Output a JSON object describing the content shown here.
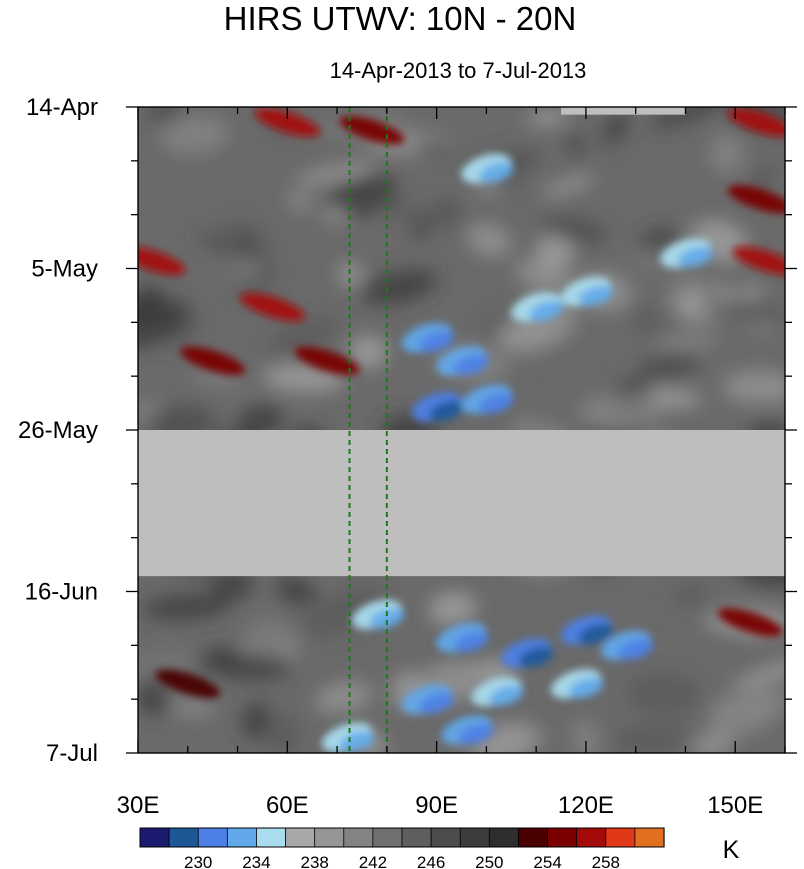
{
  "chart_data": {
    "type": "heatmap",
    "title": "HIRS UTWV: 10N - 20N",
    "subtitle": "14-Apr-2013 to 7-Jul-2013",
    "x_axis": {
      "range": [
        30,
        160
      ],
      "ticks": [
        {
          "value": 30,
          "label": "30E"
        },
        {
          "value": 60,
          "label": "60E"
        },
        {
          "value": 90,
          "label": "90E"
        },
        {
          "value": 120,
          "label": "120E"
        },
        {
          "value": 150,
          "label": "150E"
        }
      ]
    },
    "y_axis": {
      "range": [
        "2013-04-14",
        "2013-07-07"
      ],
      "orientation": "time increases downward",
      "ticks": [
        {
          "value": "2013-04-14",
          "label": "14-Apr"
        },
        {
          "value": "2013-05-05",
          "label": "5-May"
        },
        {
          "value": "2013-05-26",
          "label": "26-May"
        },
        {
          "value": "2013-06-16",
          "label": "16-Jun"
        },
        {
          "value": "2013-07-07",
          "label": "7-Jul"
        }
      ]
    },
    "reference_lines": [
      {
        "lon": 72.5,
        "color": "#1a7a1a",
        "style": "dashed"
      },
      {
        "lon": 80.0,
        "color": "#1a7a1a",
        "style": "dashed"
      }
    ],
    "missing_data": [
      {
        "start": "2013-05-26",
        "end": "2013-06-14",
        "lon_range": [
          30,
          160
        ],
        "color": "#bebebe"
      },
      {
        "start": "2013-04-14",
        "end": "2013-04-15",
        "lon_range": [
          115,
          140
        ],
        "color": "#bebebe"
      }
    ],
    "colorbar": {
      "unit": "K",
      "levels": [
        228,
        230,
        232,
        234,
        236,
        238,
        240,
        242,
        244,
        246,
        248,
        250,
        252,
        254,
        256,
        258,
        260
      ],
      "colors": [
        "#1a1a6e",
        "#1c5796",
        "#4d7fe6",
        "#61a8ea",
        "#a9dcee",
        "#a8a8a8",
        "#959595",
        "#838383",
        "#707070",
        "#5e5e5e",
        "#4c4c4c",
        "#3c3c3c",
        "#2e2e2e",
        "#4a0000",
        "#7a0000",
        "#a40a0a",
        "#e03818",
        "#e07020"
      ],
      "tick_labels": [
        "230",
        "234",
        "238",
        "242",
        "246",
        "250",
        "254",
        "258"
      ]
    },
    "features": [
      {
        "lon": 60,
        "date": "2013-04-16",
        "value": 256
      },
      {
        "lon": 77,
        "date": "2013-04-17",
        "value": 255
      },
      {
        "lon": 155,
        "date": "2013-04-16",
        "value": 256
      },
      {
        "lon": 155,
        "date": "2013-04-26",
        "value": 255
      },
      {
        "lon": 33,
        "date": "2013-05-04",
        "value": 256
      },
      {
        "lon": 57,
        "date": "2013-05-10",
        "value": 257
      },
      {
        "lon": 156,
        "date": "2013-05-04",
        "value": 256
      },
      {
        "lon": 45,
        "date": "2013-05-17",
        "value": 254
      },
      {
        "lon": 68,
        "date": "2013-05-17",
        "value": 254
      },
      {
        "lon": 40,
        "date": "2013-06-28",
        "value": 253
      },
      {
        "lon": 153,
        "date": "2013-06-20",
        "value": 254
      },
      {
        "lon": 100,
        "date": "2013-04-22",
        "value": 235
      },
      {
        "lon": 110,
        "date": "2013-05-10",
        "value": 234
      },
      {
        "lon": 120,
        "date": "2013-05-08",
        "value": 235
      },
      {
        "lon": 140,
        "date": "2013-05-03",
        "value": 234
      },
      {
        "lon": 88,
        "date": "2013-05-14",
        "value": 233
      },
      {
        "lon": 95,
        "date": "2013-05-17",
        "value": 232
      },
      {
        "lon": 90,
        "date": "2013-05-23",
        "value": 230
      },
      {
        "lon": 100,
        "date": "2013-05-22",
        "value": 233
      },
      {
        "lon": 78,
        "date": "2013-06-19",
        "value": 234
      },
      {
        "lon": 95,
        "date": "2013-06-22",
        "value": 233
      },
      {
        "lon": 108,
        "date": "2013-06-24",
        "value": 231
      },
      {
        "lon": 120,
        "date": "2013-06-21",
        "value": 231
      },
      {
        "lon": 128,
        "date": "2013-06-23",
        "value": 233
      },
      {
        "lon": 88,
        "date": "2013-06-30",
        "value": 232
      },
      {
        "lon": 96,
        "date": "2013-07-04",
        "value": 232
      },
      {
        "lon": 102,
        "date": "2013-06-29",
        "value": 234
      },
      {
        "lon": 118,
        "date": "2013-06-28",
        "value": 235
      },
      {
        "lon": 72,
        "date": "2013-07-05",
        "value": 235
      }
    ]
  }
}
